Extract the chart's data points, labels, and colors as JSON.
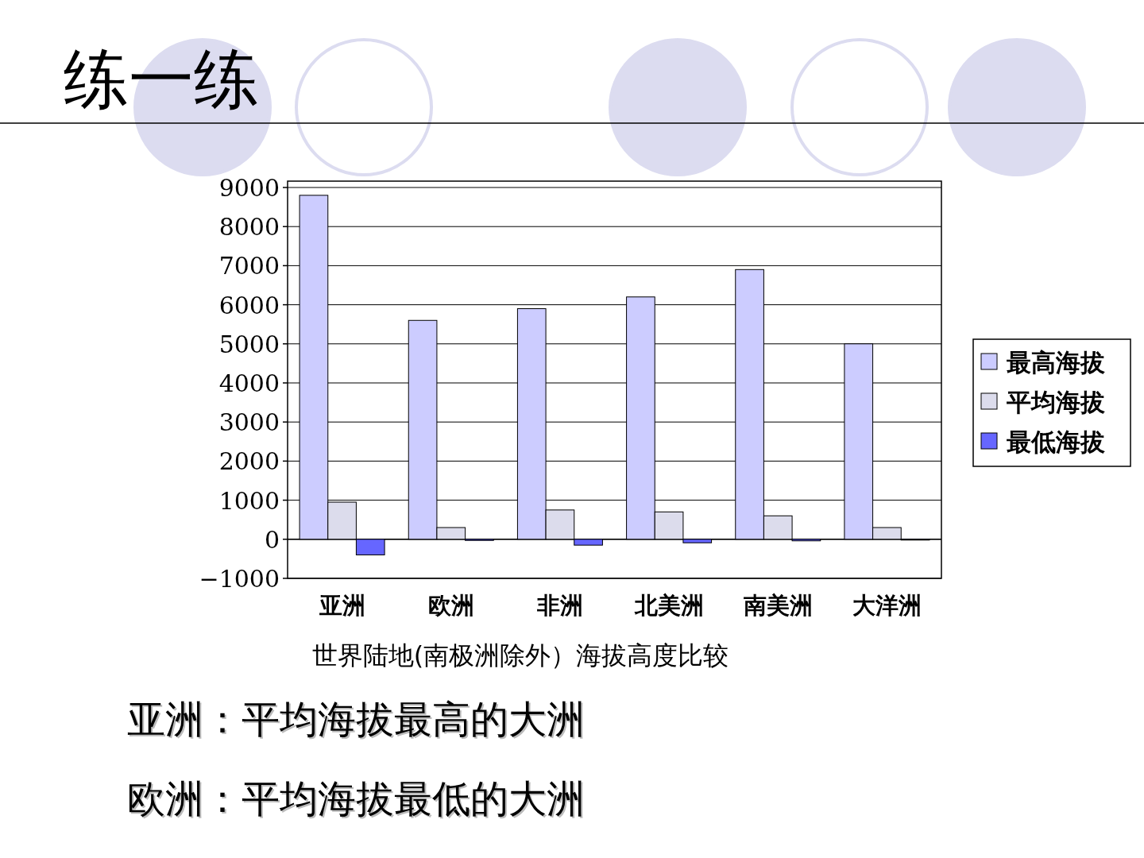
{
  "chart_data": {
    "type": "bar",
    "title": "练一练",
    "xlabel": "世界陆地(南极洲除外）海拔高度比较",
    "annotations": [
      "亚洲：平均海拔最高的大洲",
      "欧洲：平均海拔最低的大洲"
    ],
    "categories": [
      "亚洲",
      "欧洲",
      "非洲",
      "北美洲",
      "南美洲",
      "大洋洲"
    ],
    "series": [
      {
        "name": "最高海拔",
        "color": "#ccccff",
        "values": [
          8800,
          5600,
          5900,
          6200,
          6900,
          5000
        ]
      },
      {
        "name": "平均海拔",
        "color": "#dcdcec",
        "values": [
          950,
          300,
          750,
          700,
          600,
          300
        ]
      },
      {
        "name": "最低海拔",
        "color": "#6666ff",
        "values": [
          -400,
          -30,
          -150,
          -90,
          -40,
          -20
        ]
      }
    ],
    "ylim": [
      -1000,
      9000
    ],
    "yticks": [
      -1000,
      0,
      1000,
      2000,
      3000,
      4000,
      5000,
      6000,
      7000,
      8000,
      9000
    ],
    "grid": "y",
    "legend": "right"
  }
}
